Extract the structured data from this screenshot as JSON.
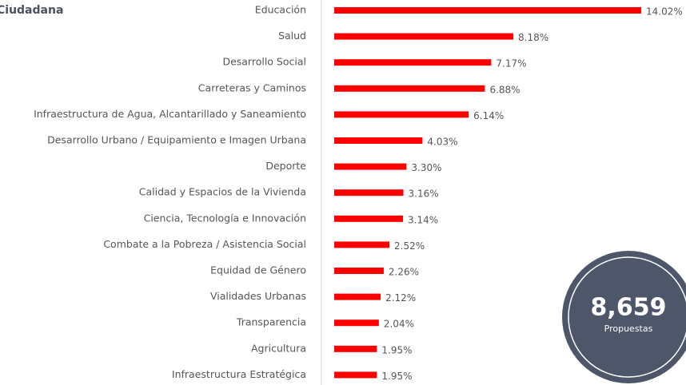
{
  "chart_data": {
    "type": "bar",
    "orientation": "horizontal",
    "title": "Ciudadana",
    "categories": [
      "Educación",
      "Salud",
      "Desarrollo Social",
      "Carreteras y Caminos",
      "Infraestructura de Agua, Alcantarillado y Saneamiento",
      "Desarrollo Urbano / Equipamiento e Imagen Urbana",
      "Deporte",
      "Calidad y Espacios de la Vivienda",
      "Ciencia, Tecnología e Innovación",
      "Combate a la Pobreza / Asistencia Social",
      "Equidad de Género",
      "Vialidades Urbanas",
      "Transparencia",
      "Agricultura",
      "Infraestructura Estratégica"
    ],
    "values": [
      14.02,
      8.18,
      7.17,
      6.88,
      6.14,
      4.03,
      3.3,
      3.16,
      3.14,
      2.52,
      2.26,
      2.12,
      2.04,
      1.95,
      1.95
    ],
    "value_labels": [
      "14.02%",
      "8.18%",
      "7.17%",
      "6.88%",
      "6.14%",
      "4.03%",
      "3.30%",
      "3.16%",
      "3.14%",
      "2.52%",
      "2.26%",
      "2.12%",
      "2.04%",
      "1.95%",
      "1.95%"
    ],
    "color": "#ff0000"
  },
  "badge": {
    "value": "8,659",
    "label": "Propuestas"
  }
}
